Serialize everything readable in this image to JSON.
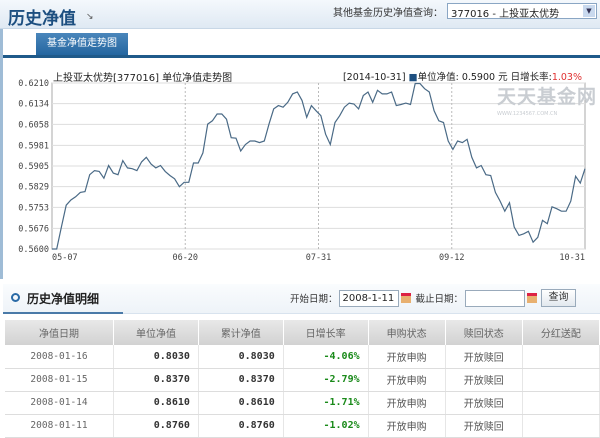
{
  "header": {
    "title": "历史净值",
    "other_label": "其他基金历史净值查询：",
    "fund_select": "377016 - 上投亚太优势"
  },
  "tabs": [
    {
      "label": "基金净值走势图",
      "active": true
    }
  ],
  "chart_data": {
    "type": "line",
    "title": "上投亚太优势[377016] 单位净值走势图",
    "legend": {
      "date": "[2014-10-31]",
      "series_label": "单位净值",
      "value_text": ": 0.5900 元",
      "growth_label": "日增长率:",
      "growth_value": "1.03%"
    },
    "watermark": "天天基金网",
    "watermark_sub": "WWW.1234567.COM.CN",
    "yticks": [
      "0.6210",
      "0.6134",
      "0.6058",
      "0.5981",
      "0.5905",
      "0.5829",
      "0.5753",
      "0.5676",
      "0.5600"
    ],
    "ylim": [
      0.56,
      0.621
    ],
    "xticks": [
      "05-07",
      "06-20",
      "07-31",
      "09-12",
      "10-31"
    ],
    "grid": true,
    "line_color": "#4a6a86",
    "series": [
      {
        "name": "单位净值",
        "values": [
          0.56,
          0.56,
          0.5681,
          0.5761,
          0.578,
          0.5792,
          0.5808,
          0.5811,
          0.5873,
          0.5888,
          0.5885,
          0.586,
          0.5907,
          0.5879,
          0.5873,
          0.5925,
          0.5898,
          0.5895,
          0.5888,
          0.592,
          0.5937,
          0.5912,
          0.5898,
          0.5907,
          0.5885,
          0.587,
          0.5858,
          0.5829,
          0.5845,
          0.5845,
          0.5916,
          0.5916,
          0.5953,
          0.6059,
          0.6071,
          0.6096,
          0.6096,
          0.6077,
          0.6009,
          0.6007,
          0.596,
          0.5984,
          0.5997,
          0.5997,
          0.5991,
          0.5997,
          0.6059,
          0.6115,
          0.6127,
          0.6121,
          0.6139,
          0.617,
          0.6177,
          0.6146,
          0.6084,
          0.6127,
          0.6108,
          0.609,
          0.6022,
          0.5984,
          0.6065,
          0.609,
          0.6121,
          0.6136,
          0.6133,
          0.6115,
          0.6164,
          0.6177,
          0.6139,
          0.6183,
          0.617,
          0.617,
          0.6177,
          0.6127,
          0.6131,
          0.6136,
          0.6131,
          0.6208,
          0.6208,
          0.6189,
          0.6177,
          0.6108,
          0.6071,
          0.6065,
          0.5997,
          0.5966,
          0.5997,
          0.5991,
          0.6003,
          0.5937,
          0.5898,
          0.5907,
          0.5873,
          0.587,
          0.5808,
          0.5776,
          0.5739,
          0.577,
          0.5681,
          0.565,
          0.5656,
          0.5665,
          0.5625,
          0.5643,
          0.5705,
          0.5693,
          0.5755,
          0.5748,
          0.5739,
          0.5739,
          0.5776,
          0.5867,
          0.5842,
          0.5895
        ]
      }
    ]
  },
  "detail": {
    "title": "历史净值明细",
    "start_label": "开始日期：",
    "start_value": "2008-1-11",
    "end_label": "截止日期：",
    "end_value": "",
    "query": "查询",
    "columns": [
      "净值日期",
      "单位净值",
      "累计净值",
      "日增长率",
      "申购状态",
      "赎回状态",
      "分红送配"
    ],
    "rows": [
      [
        "2008-01-16",
        "0.8030",
        "0.8030",
        "-4.06%",
        "开放申购",
        "开放赎回",
        ""
      ],
      [
        "2008-01-15",
        "0.8370",
        "0.8370",
        "-2.79%",
        "开放申购",
        "开放赎回",
        ""
      ],
      [
        "2008-01-14",
        "0.8610",
        "0.8610",
        "-1.71%",
        "开放申购",
        "开放赎回",
        ""
      ],
      [
        "2008-01-11",
        "0.8760",
        "0.8760",
        "-1.02%",
        "开放申购",
        "开放赎回",
        ""
      ]
    ]
  }
}
